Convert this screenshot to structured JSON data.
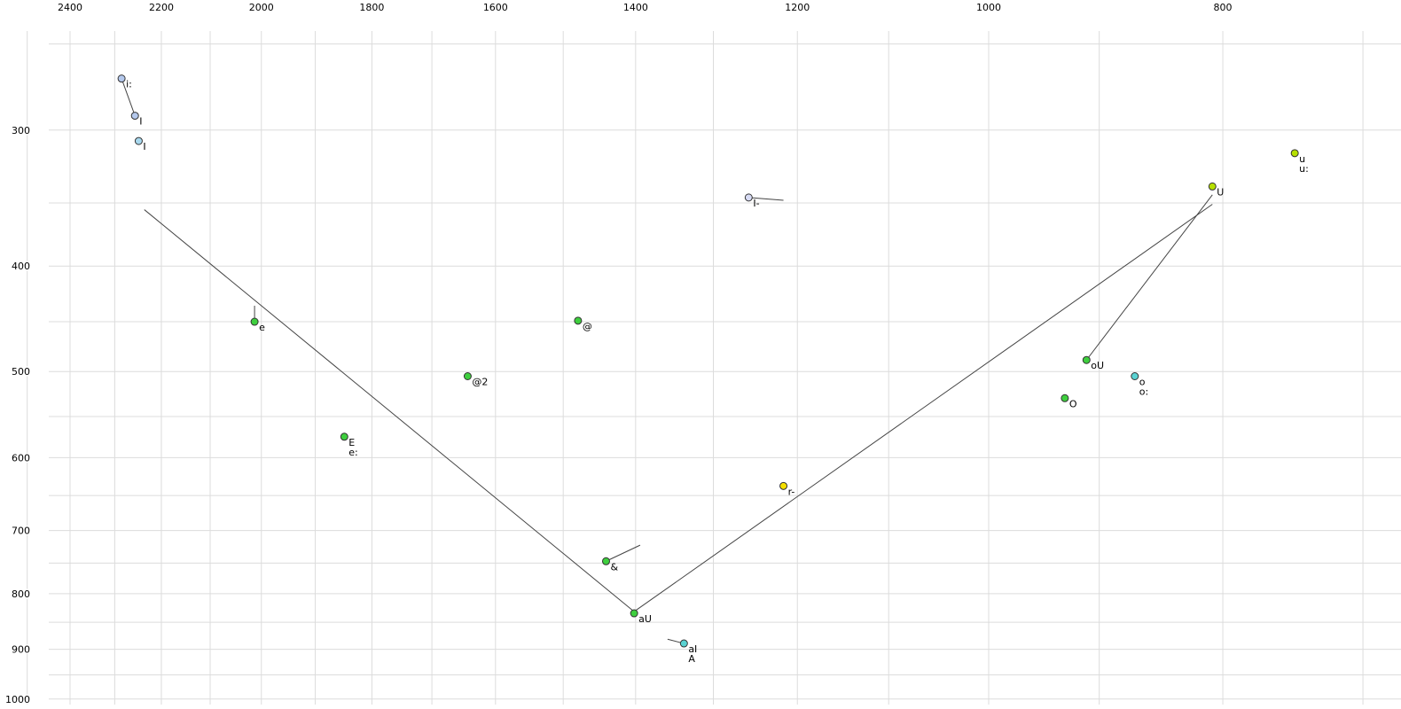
{
  "chart_data": {
    "type": "scatter",
    "title": "",
    "xlabel": "",
    "ylabel": "",
    "x_axis": {
      "position": "top",
      "scale": "log",
      "reversed": true,
      "unit": "Hz",
      "tick_labels": [
        2400,
        2200,
        2000,
        1800,
        1600,
        1400,
        1200,
        1000,
        800
      ],
      "minor_grid_step": 100,
      "grid_min": 700,
      "grid_max": 2500
    },
    "y_axis": {
      "position": "left",
      "scale": "log",
      "increases_downward": true,
      "unit": "Hz",
      "tick_labels": [
        300,
        400,
        500,
        600,
        700,
        800,
        900,
        1000
      ],
      "minor_grid_step": 50,
      "grid_min": 250,
      "grid_max": 1000
    },
    "grid": true,
    "grid_color": "#dcdcdc",
    "line_color": "#444444",
    "point_stroke_color": "#333333",
    "points": [
      {
        "label": "i:",
        "f2": 2285,
        "f1": 269,
        "color": "#b4c8ec"
      },
      {
        "label": "I",
        "f2": 2256,
        "f1": 291,
        "color": "#b4c8ec"
      },
      {
        "label": "I",
        "f2": 2248,
        "f1": 307,
        "color": "#a8d8ee"
      },
      {
        "label": "e",
        "f2": 2013,
        "f1": 450,
        "color": "#3ecf3e"
      },
      {
        "label": "E",
        "label2": "e:",
        "f2": 1848,
        "f1": 574,
        "color": "#3ecf3e"
      },
      {
        "label": "@2",
        "f2": 1643,
        "f1": 505,
        "color": "#3ecf3e"
      },
      {
        "label": "@",
        "f2": 1479,
        "f1": 449,
        "color": "#3ecf3e"
      },
      {
        "label": "I-",
        "f2": 1257,
        "f1": 346,
        "color": "#d8dcf6"
      },
      {
        "label": "r-",
        "f2": 1216,
        "f1": 637,
        "color": "#f5e000"
      },
      {
        "label": "&",
        "f2": 1440,
        "f1": 747,
        "color": "#3ecf3e"
      },
      {
        "label": "aU",
        "f2": 1402,
        "f1": 834,
        "color": "#3ecf3e"
      },
      {
        "label": "aI",
        "label2": "A",
        "f2": 1337,
        "f1": 889,
        "color": "#59d2d2"
      },
      {
        "label": "U",
        "f2": 808,
        "f1": 338,
        "color": "#b6e000"
      },
      {
        "label": "u",
        "label2": "u:",
        "f2": 747,
        "f1": 315,
        "color": "#b6e000"
      },
      {
        "label": "oU",
        "f2": 911,
        "f1": 488,
        "color": "#3ecf3e"
      },
      {
        "label": "o",
        "label2": "o:",
        "f2": 870,
        "f1": 505,
        "color": "#59d2d2"
      },
      {
        "label": "O",
        "f2": 930,
        "f1": 529,
        "color": "#3ecf3e"
      }
    ],
    "segments": [
      [
        [
          2285,
          269
        ],
        [
          2256,
          291
        ]
      ],
      [
        [
          2013,
          435
        ],
        [
          2013,
          450
        ]
      ],
      [
        [
          1257,
          346
        ],
        [
          1216,
          348
        ]
      ],
      [
        [
          1440,
          747
        ],
        [
          1394,
          722
        ]
      ],
      [
        [
          1358,
          881
        ],
        [
          1337,
          889
        ]
      ],
      [
        [
          2236,
          355
        ],
        [
          1402,
          831
        ]
      ],
      [
        [
          1402,
          831
        ],
        [
          808,
          351
        ]
      ],
      [
        [
          808,
          344
        ],
        [
          911,
          488
        ]
      ]
    ]
  }
}
